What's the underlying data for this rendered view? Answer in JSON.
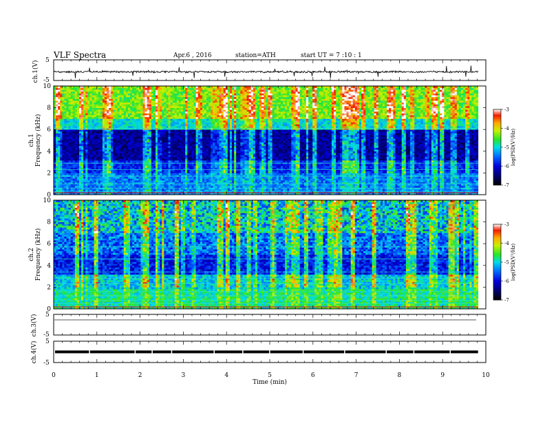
{
  "header": {
    "title": "VLF  Spectra",
    "date": "Apr.6  , 2016",
    "station": "station=ATH",
    "start": "start  UT  =   7  :10 : 1"
  },
  "axis_labels": {
    "ch1_waveform": "ch.1(V)",
    "ch1_spec_ch": "ch.1",
    "ch1_spec_freq": "Frequency  (kHz)",
    "ch2_spec_ch": "ch.2",
    "ch2_spec_freq": "Frequency  (kHz)",
    "ch3": "ch.3(V)",
    "ch4": "ch.4(V)",
    "x": "Time  (min)",
    "colorbar": "log(PSD(V²/Hz)"
  },
  "chart_data": [
    {
      "type": "line",
      "panel": "ch.1 waveform",
      "ylabel": "ch.1(V)",
      "ylim": [
        -5,
        5
      ],
      "yticks": [
        "5",
        "-5"
      ],
      "xlim": [
        0,
        10
      ],
      "mean_level": -0.8,
      "fluctuation": 0.4,
      "data_end_min": 9.82
    },
    {
      "type": "heatmap",
      "panel": "ch.1 spectrogram",
      "ylabel": "Frequency  (kHz)",
      "channel": "ch.1",
      "ylim": [
        0,
        10
      ],
      "yticks": [
        "0",
        "2",
        "4",
        "6",
        "8",
        "10"
      ],
      "xlim": [
        0,
        10
      ],
      "colorbar_range": [
        -7,
        -3
      ],
      "colorbar_ticks": [
        "-3",
        "-4",
        "-5",
        "-6",
        "-7"
      ],
      "colorbar_label": "log(PSD(V²/Hz)"
    },
    {
      "type": "heatmap",
      "panel": "ch.2 spectrogram",
      "ylabel": "Frequency  (kHz)",
      "channel": "ch.2",
      "ylim": [
        0,
        10
      ],
      "yticks": [
        "0",
        "2",
        "4",
        "6",
        "8",
        "10"
      ],
      "xlim": [
        0,
        10
      ],
      "colorbar_range": [
        -7,
        -3
      ],
      "colorbar_ticks": [
        "-3",
        "-4",
        "-5",
        "-6",
        "-7"
      ],
      "colorbar_label": "log(PSD(V²/Hz)"
    },
    {
      "type": "line",
      "panel": "ch.3",
      "ylabel": "ch.3(V)",
      "ylim": [
        -5,
        5
      ],
      "yticks": [
        "5",
        "-5"
      ],
      "level": 4.5
    },
    {
      "type": "line",
      "panel": "ch.4",
      "ylabel": "ch.4(V)",
      "ylim": [
        -5,
        5
      ],
      "yticks": [
        "5",
        "-5"
      ],
      "level": 0
    }
  ],
  "x_axis": {
    "xlabel": "Time  (min)",
    "ticks": [
      "0",
      "1",
      "2",
      "3",
      "4",
      "5",
      "6",
      "7",
      "8",
      "9",
      "10"
    ]
  }
}
